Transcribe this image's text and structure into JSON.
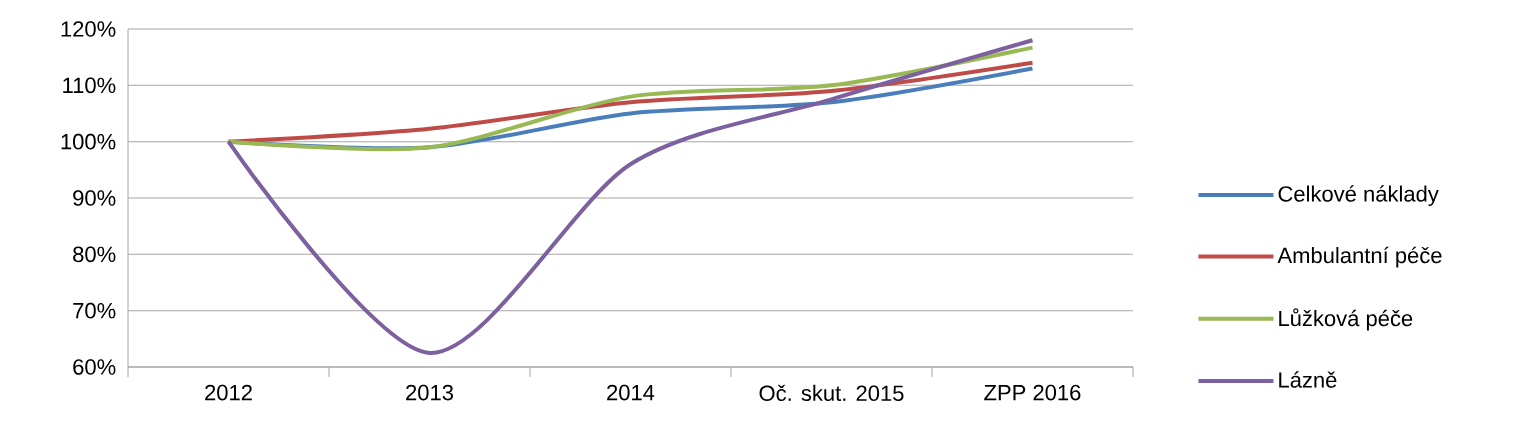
{
  "chart_data": {
    "type": "line",
    "categories": [
      "2012",
      "2013",
      "2014",
      "Oč. skut. 2015",
      "ZPP 2016"
    ],
    "series": [
      {
        "name": "Celkové náklady",
        "color": "#4a7ebb",
        "values": [
          100,
          99,
          105,
          107,
          113
        ]
      },
      {
        "name": "Ambulantní péče",
        "color": "#be4b48",
        "values": [
          100,
          102.3,
          107,
          109,
          114
        ]
      },
      {
        "name": "Lůžková péče",
        "color": "#98b954",
        "values": [
          100,
          99,
          108,
          110,
          116.7
        ]
      },
      {
        "name": "Lázně",
        "color": "#7d60a0",
        "values": [
          100,
          62.5,
          96,
          107.5,
          118
        ]
      }
    ],
    "ylim": [
      60,
      120
    ],
    "yticks": [
      {
        "value": 60,
        "label": "60%"
      },
      {
        "value": 70,
        "label": "70%"
      },
      {
        "value": 80,
        "label": "80%"
      },
      {
        "value": 90,
        "label": "90%"
      },
      {
        "value": 100,
        "label": "100%"
      },
      {
        "value": 110,
        "label": "110%"
      },
      {
        "value": 120,
        "label": "120%"
      }
    ],
    "grid": "y",
    "legend": "right",
    "marker": "none",
    "line_style": "solid"
  }
}
